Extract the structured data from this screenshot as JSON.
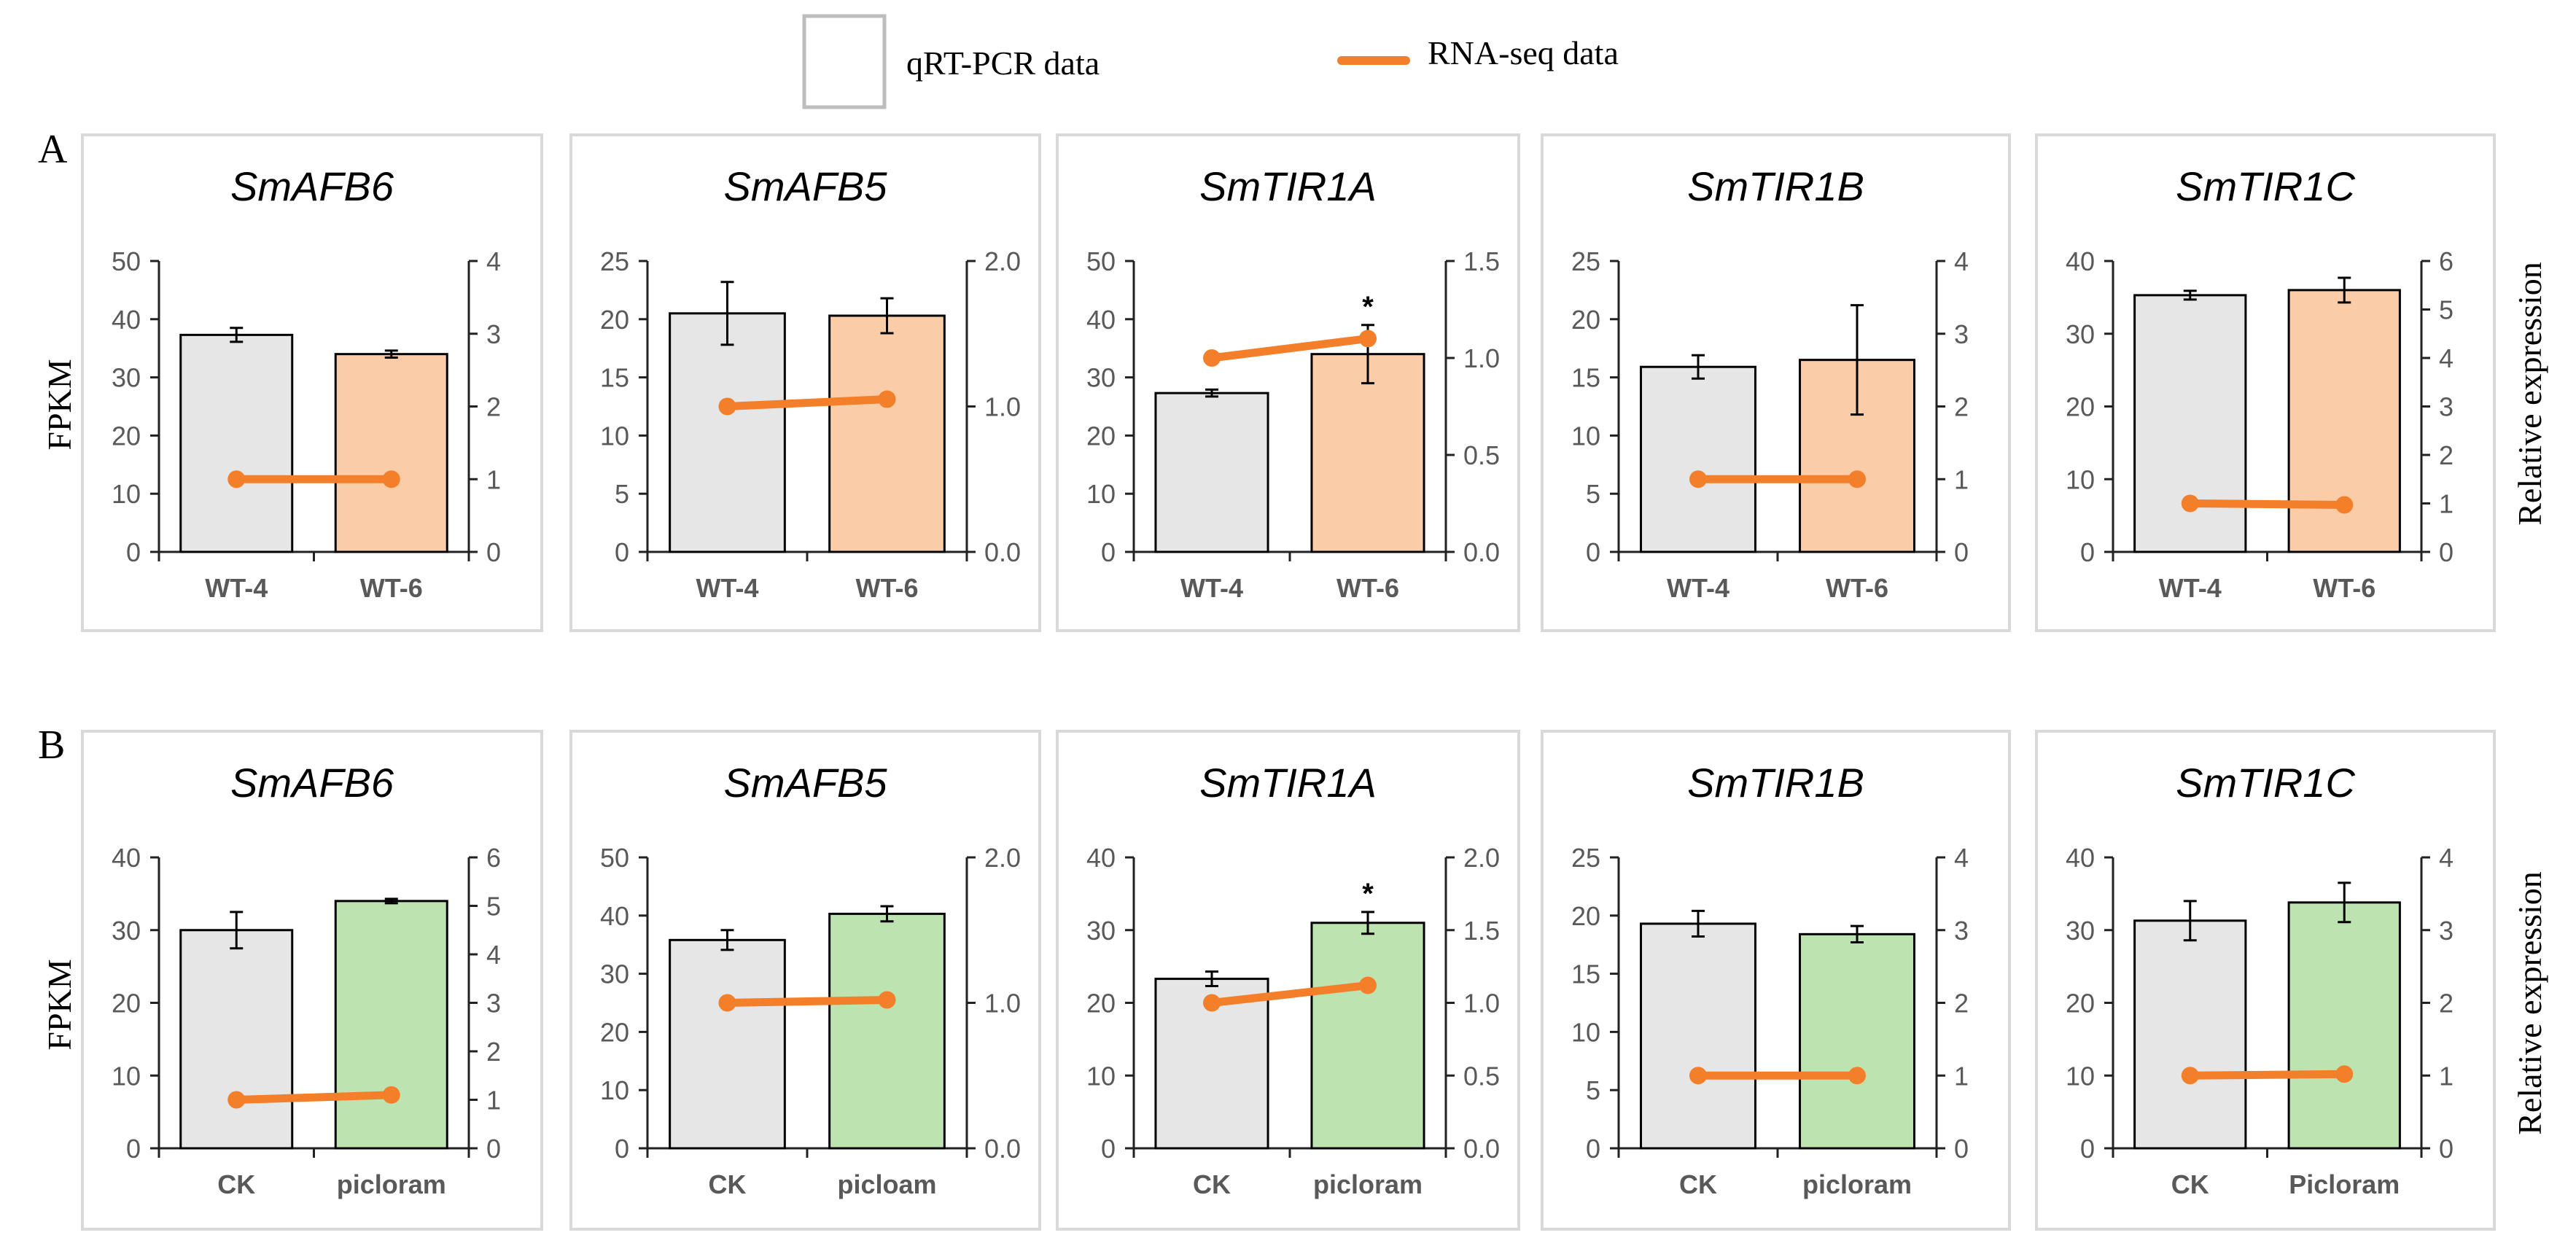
{
  "legend": {
    "bar_label": "qRT-PCR data",
    "line_label": "RNA-seq data"
  },
  "row_labels": [
    "A",
    "B"
  ],
  "left_axis_label": "FPKM",
  "right_axis_label": "Relative expression",
  "colors": {
    "control_bar": "#e6e6e6",
    "wt6_bar": "#fbcca8",
    "picloram_bar": "#bde3b1",
    "line": "#f47f2a",
    "legend_box": "#bdbdbd",
    "panel_border": "#d9d9d9"
  },
  "chart_data": [
    {
      "type": "bar+line",
      "row": "A",
      "title": "SmAFB6",
      "categories": [
        "WT-4",
        "WT-6"
      ],
      "left_ticks": [
        "0",
        "10",
        "20",
        "30",
        "40",
        "50"
      ],
      "left_lim": [
        0,
        50
      ],
      "right_ticks": [
        "0",
        "1",
        "2",
        "3",
        "4"
      ],
      "right_lim": [
        0,
        4
      ],
      "bars": [
        37.3,
        34.0
      ],
      "errors": [
        1.2,
        0.6
      ],
      "line": [
        1.0,
        1.0
      ],
      "sig": [
        "",
        ""
      ]
    },
    {
      "type": "bar+line",
      "row": "A",
      "title": "SmAFB5",
      "categories": [
        "WT-4",
        "WT-6"
      ],
      "left_ticks": [
        "0",
        "5",
        "10",
        "15",
        "20",
        "25"
      ],
      "left_lim": [
        0,
        25
      ],
      "right_ticks": [
        "0.0",
        "1.0",
        "2.0"
      ],
      "right_lim": [
        0,
        2
      ],
      "bars": [
        20.5,
        20.3
      ],
      "errors": [
        2.7,
        1.5
      ],
      "line": [
        1.0,
        1.05
      ],
      "sig": [
        "",
        ""
      ]
    },
    {
      "type": "bar+line",
      "row": "A",
      "title": "SmTIR1A",
      "categories": [
        "WT-4",
        "WT-6"
      ],
      "left_ticks": [
        "0",
        "10",
        "20",
        "30",
        "40",
        "50"
      ],
      "left_lim": [
        0,
        50
      ],
      "right_ticks": [
        "0.0",
        "0.5",
        "1.0",
        "1.5"
      ],
      "right_lim": [
        0,
        1.5
      ],
      "bars": [
        27.3,
        34.0
      ],
      "errors": [
        0.6,
        5.0
      ],
      "line": [
        1.0,
        1.1
      ],
      "sig": [
        "",
        "*"
      ]
    },
    {
      "type": "bar+line",
      "row": "A",
      "title": "SmTIR1B",
      "categories": [
        "WT-4",
        "WT-6"
      ],
      "left_ticks": [
        "0",
        "5",
        "10",
        "15",
        "20",
        "25"
      ],
      "left_lim": [
        0,
        25
      ],
      "right_ticks": [
        "0",
        "1",
        "2",
        "3",
        "4"
      ],
      "right_lim": [
        0,
        4
      ],
      "bars": [
        15.9,
        16.5
      ],
      "errors": [
        1.0,
        4.7
      ],
      "line": [
        1.0,
        1.0
      ],
      "sig": [
        "",
        ""
      ]
    },
    {
      "type": "bar+line",
      "row": "A",
      "title": "SmTIR1C",
      "categories": [
        "WT-4",
        "WT-6"
      ],
      "left_ticks": [
        "0",
        "10",
        "20",
        "30",
        "40"
      ],
      "left_lim": [
        0,
        40
      ],
      "right_ticks": [
        "0",
        "1",
        "2",
        "3",
        "4",
        "5",
        "6"
      ],
      "right_lim": [
        0,
        6
      ],
      "bars": [
        35.3,
        36.0
      ],
      "errors": [
        0.6,
        1.7
      ],
      "line": [
        1.0,
        0.97
      ],
      "sig": [
        "",
        ""
      ]
    },
    {
      "type": "bar+line",
      "row": "B",
      "title": "SmAFB6",
      "categories": [
        "CK",
        "picloram"
      ],
      "left_ticks": [
        "0",
        "10",
        "20",
        "30",
        "40"
      ],
      "left_lim": [
        0,
        40
      ],
      "right_ticks": [
        "0",
        "1",
        "2",
        "3",
        "4",
        "5",
        "6"
      ],
      "right_lim": [
        0,
        6
      ],
      "bars": [
        30.0,
        34.0
      ],
      "errors": [
        2.5,
        0.3
      ],
      "line": [
        1.0,
        1.1
      ],
      "sig": [
        "",
        ""
      ]
    },
    {
      "type": "bar+line",
      "row": "B",
      "title": "SmAFB5",
      "categories": [
        "CK",
        "picloam"
      ],
      "left_ticks": [
        "0",
        "10",
        "20",
        "30",
        "40",
        "50"
      ],
      "left_lim": [
        0,
        50
      ],
      "right_ticks": [
        "0.0",
        "1.0",
        "2.0"
      ],
      "right_lim": [
        0,
        2
      ],
      "bars": [
        35.8,
        40.3
      ],
      "errors": [
        1.7,
        1.3
      ],
      "line": [
        1.0,
        1.02
      ],
      "sig": [
        "",
        ""
      ]
    },
    {
      "type": "bar+line",
      "row": "B",
      "title": "SmTIR1A",
      "categories": [
        "CK",
        "picloram"
      ],
      "left_ticks": [
        "0",
        "10",
        "20",
        "30",
        "40"
      ],
      "left_lim": [
        0,
        40
      ],
      "right_ticks": [
        "0.0",
        "0.5",
        "1.0",
        "1.5",
        "2.0"
      ],
      "right_lim": [
        0,
        2
      ],
      "bars": [
        23.3,
        31.0
      ],
      "errors": [
        1.0,
        1.5
      ],
      "line": [
        1.0,
        1.12
      ],
      "sig": [
        "",
        "*"
      ]
    },
    {
      "type": "bar+line",
      "row": "B",
      "title": "SmTIR1B",
      "categories": [
        "CK",
        "picloram"
      ],
      "left_ticks": [
        "0",
        "5",
        "10",
        "15",
        "20",
        "25"
      ],
      "left_lim": [
        0,
        25
      ],
      "right_ticks": [
        "0",
        "1",
        "2",
        "3",
        "4"
      ],
      "right_lim": [
        0,
        4
      ],
      "bars": [
        19.3,
        18.4
      ],
      "errors": [
        1.1,
        0.7
      ],
      "line": [
        1.0,
        1.0
      ],
      "sig": [
        "",
        ""
      ]
    },
    {
      "type": "bar+line",
      "row": "B",
      "title": "SmTIR1C",
      "categories": [
        "CK",
        "Picloram"
      ],
      "left_ticks": [
        "0",
        "10",
        "20",
        "30",
        "40"
      ],
      "left_lim": [
        0,
        40
      ],
      "right_ticks": [
        "0",
        "1",
        "2",
        "3",
        "4"
      ],
      "right_lim": [
        0,
        4
      ],
      "bars": [
        31.3,
        33.8
      ],
      "errors": [
        2.7,
        2.7
      ],
      "line": [
        1.0,
        1.02
      ],
      "sig": [
        "",
        ""
      ]
    }
  ]
}
